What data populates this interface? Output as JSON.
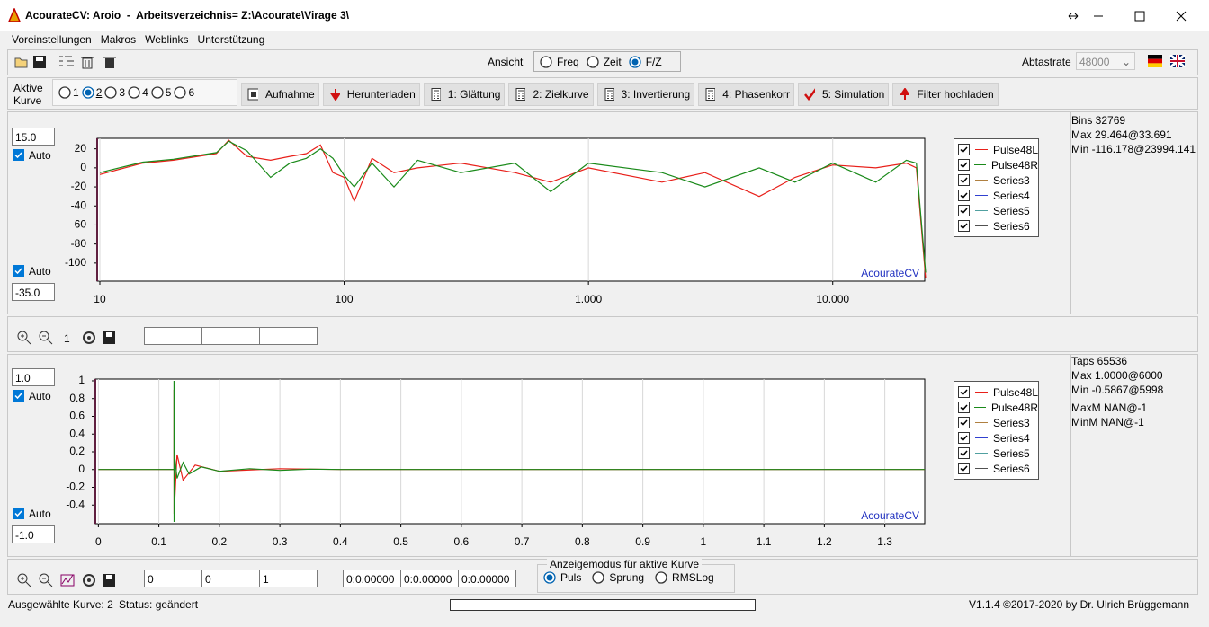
{
  "window": {
    "title": "AcourateCV: Aroio  -  Arbeitsverzeichnis= Z:\\Acourate\\Virage 3\\"
  },
  "menu": [
    "Voreinstellungen",
    "Makros",
    "Weblinks",
    "Unterstützung"
  ],
  "toolbar": {
    "view_label": "Ansicht",
    "views": [
      {
        "label": "Freq",
        "checked": false
      },
      {
        "label": "Zeit",
        "checked": false
      },
      {
        "label": "F/Z",
        "checked": true
      }
    ],
    "sample_rate_label": "Abtastrate",
    "sample_rate": "48000"
  },
  "curves": {
    "label": "Aktive Kurve",
    "options": [
      {
        "label": "1",
        "checked": false
      },
      {
        "label": "2",
        "checked": true
      },
      {
        "label": "3",
        "checked": false
      },
      {
        "label": "4",
        "checked": false
      },
      {
        "label": "5",
        "checked": false
      },
      {
        "label": "6",
        "checked": false
      }
    ],
    "buttons": [
      "Aufnahme",
      "Herunterladen",
      "1: Glättung",
      "2: Zielkurve",
      "3: Invertierung",
      "4: Phasenkorr",
      "5: Simulation",
      "Filter hochladen"
    ]
  },
  "freq_panel": {
    "top_input": "15.0",
    "top_auto": "Auto",
    "bottom_auto": "Auto",
    "bottom_input": "-35.0",
    "info": [
      "Bins 32769",
      "Max 29.464@33.691",
      "Min -116.178@23994.141"
    ],
    "chart": {
      "type": "line",
      "log_x": true,
      "grid_x": true,
      "watermark": "AcourateCV",
      "xlim": [
        9.75,
        23800
      ],
      "ylim": [
        -119,
        31
      ],
      "xticks": [
        10,
        100,
        {
          "value": 1000,
          "label": "1.000"
        },
        {
          "value": 10000,
          "label": "10.000"
        }
      ],
      "yticks": [
        20,
        0,
        -20,
        -40,
        -60,
        -80,
        -100
      ],
      "series": [
        {
          "name": "Pulse48L",
          "color": "#e8201a",
          "checked": true,
          "x": [
            10,
            15,
            20,
            30,
            33.7,
            40,
            50,
            60,
            70,
            80,
            90,
            100,
            110,
            130,
            160,
            200,
            300,
            500,
            700,
            1000,
            2000,
            3000,
            5000,
            7000,
            10000,
            15000,
            20000,
            22000,
            23994
          ],
          "values": [
            -7,
            5,
            8,
            15,
            29,
            12,
            8,
            12,
            15,
            24,
            -5,
            -10,
            -35,
            10,
            -5,
            0,
            5,
            -5,
            -15,
            0,
            -15,
            -5,
            -30,
            -10,
            3,
            0,
            5,
            0,
            -116
          ]
        },
        {
          "name": "Pulse48R",
          "color": "#1a8a1a",
          "checked": true,
          "x": [
            10,
            15,
            20,
            30,
            33.7,
            40,
            50,
            60,
            70,
            80,
            90,
            100,
            110,
            130,
            160,
            200,
            300,
            500,
            700,
            1000,
            2000,
            3000,
            5000,
            7000,
            10000,
            15000,
            20000,
            22000,
            23994
          ],
          "values": [
            -5,
            6,
            9,
            16,
            28,
            18,
            -10,
            5,
            10,
            20,
            10,
            -8,
            -20,
            5,
            -20,
            8,
            -5,
            5,
            -25,
            5,
            -5,
            -20,
            0,
            -15,
            5,
            -15,
            8,
            5,
            -110
          ]
        },
        {
          "name": "Series3",
          "color": "#b08040",
          "checked": true
        },
        {
          "name": "Series4",
          "color": "#3040d0",
          "checked": true
        },
        {
          "name": "Series5",
          "color": "#50a0a0",
          "checked": true
        },
        {
          "name": "Series6",
          "color": "#505050",
          "checked": true
        }
      ]
    }
  },
  "zoom_bar": {
    "level": "1"
  },
  "time_panel": {
    "top_input": "1.0",
    "top_auto": "Auto",
    "bottom_auto": "Auto",
    "bottom_input": "-1.0",
    "info": [
      "Taps 65536",
      "Max 1.0000@6000",
      "Min -0.5867@5998",
      "MaxM NAN@-1",
      "MinM NAN@-1"
    ],
    "chart": {
      "type": "line",
      "log_x": false,
      "grid_x": true,
      "watermark": "AcourateCV",
      "xlim": [
        -0.005,
        1.366
      ],
      "ylim": [
        -0.61,
        1.02
      ],
      "xticks": [
        0,
        0.1,
        0.2,
        0.3,
        0.4,
        0.5,
        0.6,
        0.7,
        0.8,
        0.9,
        1,
        1.1,
        1.2,
        1.3
      ],
      "yticks": [
        1,
        0.8,
        0.6,
        0.4,
        0.2,
        0,
        -0.2,
        -0.4
      ],
      "series": [
        {
          "name": "Pulse48L",
          "color": "#e8201a",
          "checked": true,
          "x": [
            0,
            0.1249,
            0.125,
            0.1251,
            0.13,
            0.14,
            0.16,
            0.2,
            0.3,
            0.4,
            1.366
          ],
          "values": [
            0,
            0,
            0.9,
            -0.5,
            0.17,
            -0.12,
            0.05,
            -0.02,
            0.01,
            0,
            0
          ]
        },
        {
          "name": "Pulse48R",
          "color": "#1a8a1a",
          "checked": true,
          "x": [
            0,
            0.1249,
            0.125,
            0.1251,
            0.126,
            0.13,
            0.14,
            0.15,
            0.17,
            0.2,
            0.25,
            0.3,
            0.35,
            0.4,
            1.366
          ],
          "values": [
            0,
            0,
            1,
            -0.59,
            0.15,
            -0.1,
            0.08,
            -0.05,
            0.03,
            -0.02,
            0.01,
            -0.01,
            0.005,
            0,
            0
          ]
        },
        {
          "name": "Series3",
          "color": "#b08040",
          "checked": true
        },
        {
          "name": "Series4",
          "color": "#3040d0",
          "checked": true
        },
        {
          "name": "Series5",
          "color": "#50a0a0",
          "checked": true
        },
        {
          "name": "Series6",
          "color": "#505050",
          "checked": true
        }
      ]
    }
  },
  "bottom_bar": {
    "inputs": [
      "0",
      "0",
      "1"
    ],
    "times": [
      "0:0.00000",
      "0:0.00000",
      "0:0.00000"
    ],
    "mode_group": {
      "title": "Anzeigemodus für aktive Kurve",
      "options": [
        {
          "label": "Puls",
          "checked": true
        },
        {
          "label": "Sprung",
          "checked": false
        },
        {
          "label": "RMSLog",
          "checked": false
        }
      ]
    }
  },
  "status": {
    "selected_curve": "Ausgewählte Kurve: 2",
    "state": "Status: geändert",
    "version": "V1.1.4 ©2017-2020 by Dr. Ulrich Brüggemann"
  }
}
